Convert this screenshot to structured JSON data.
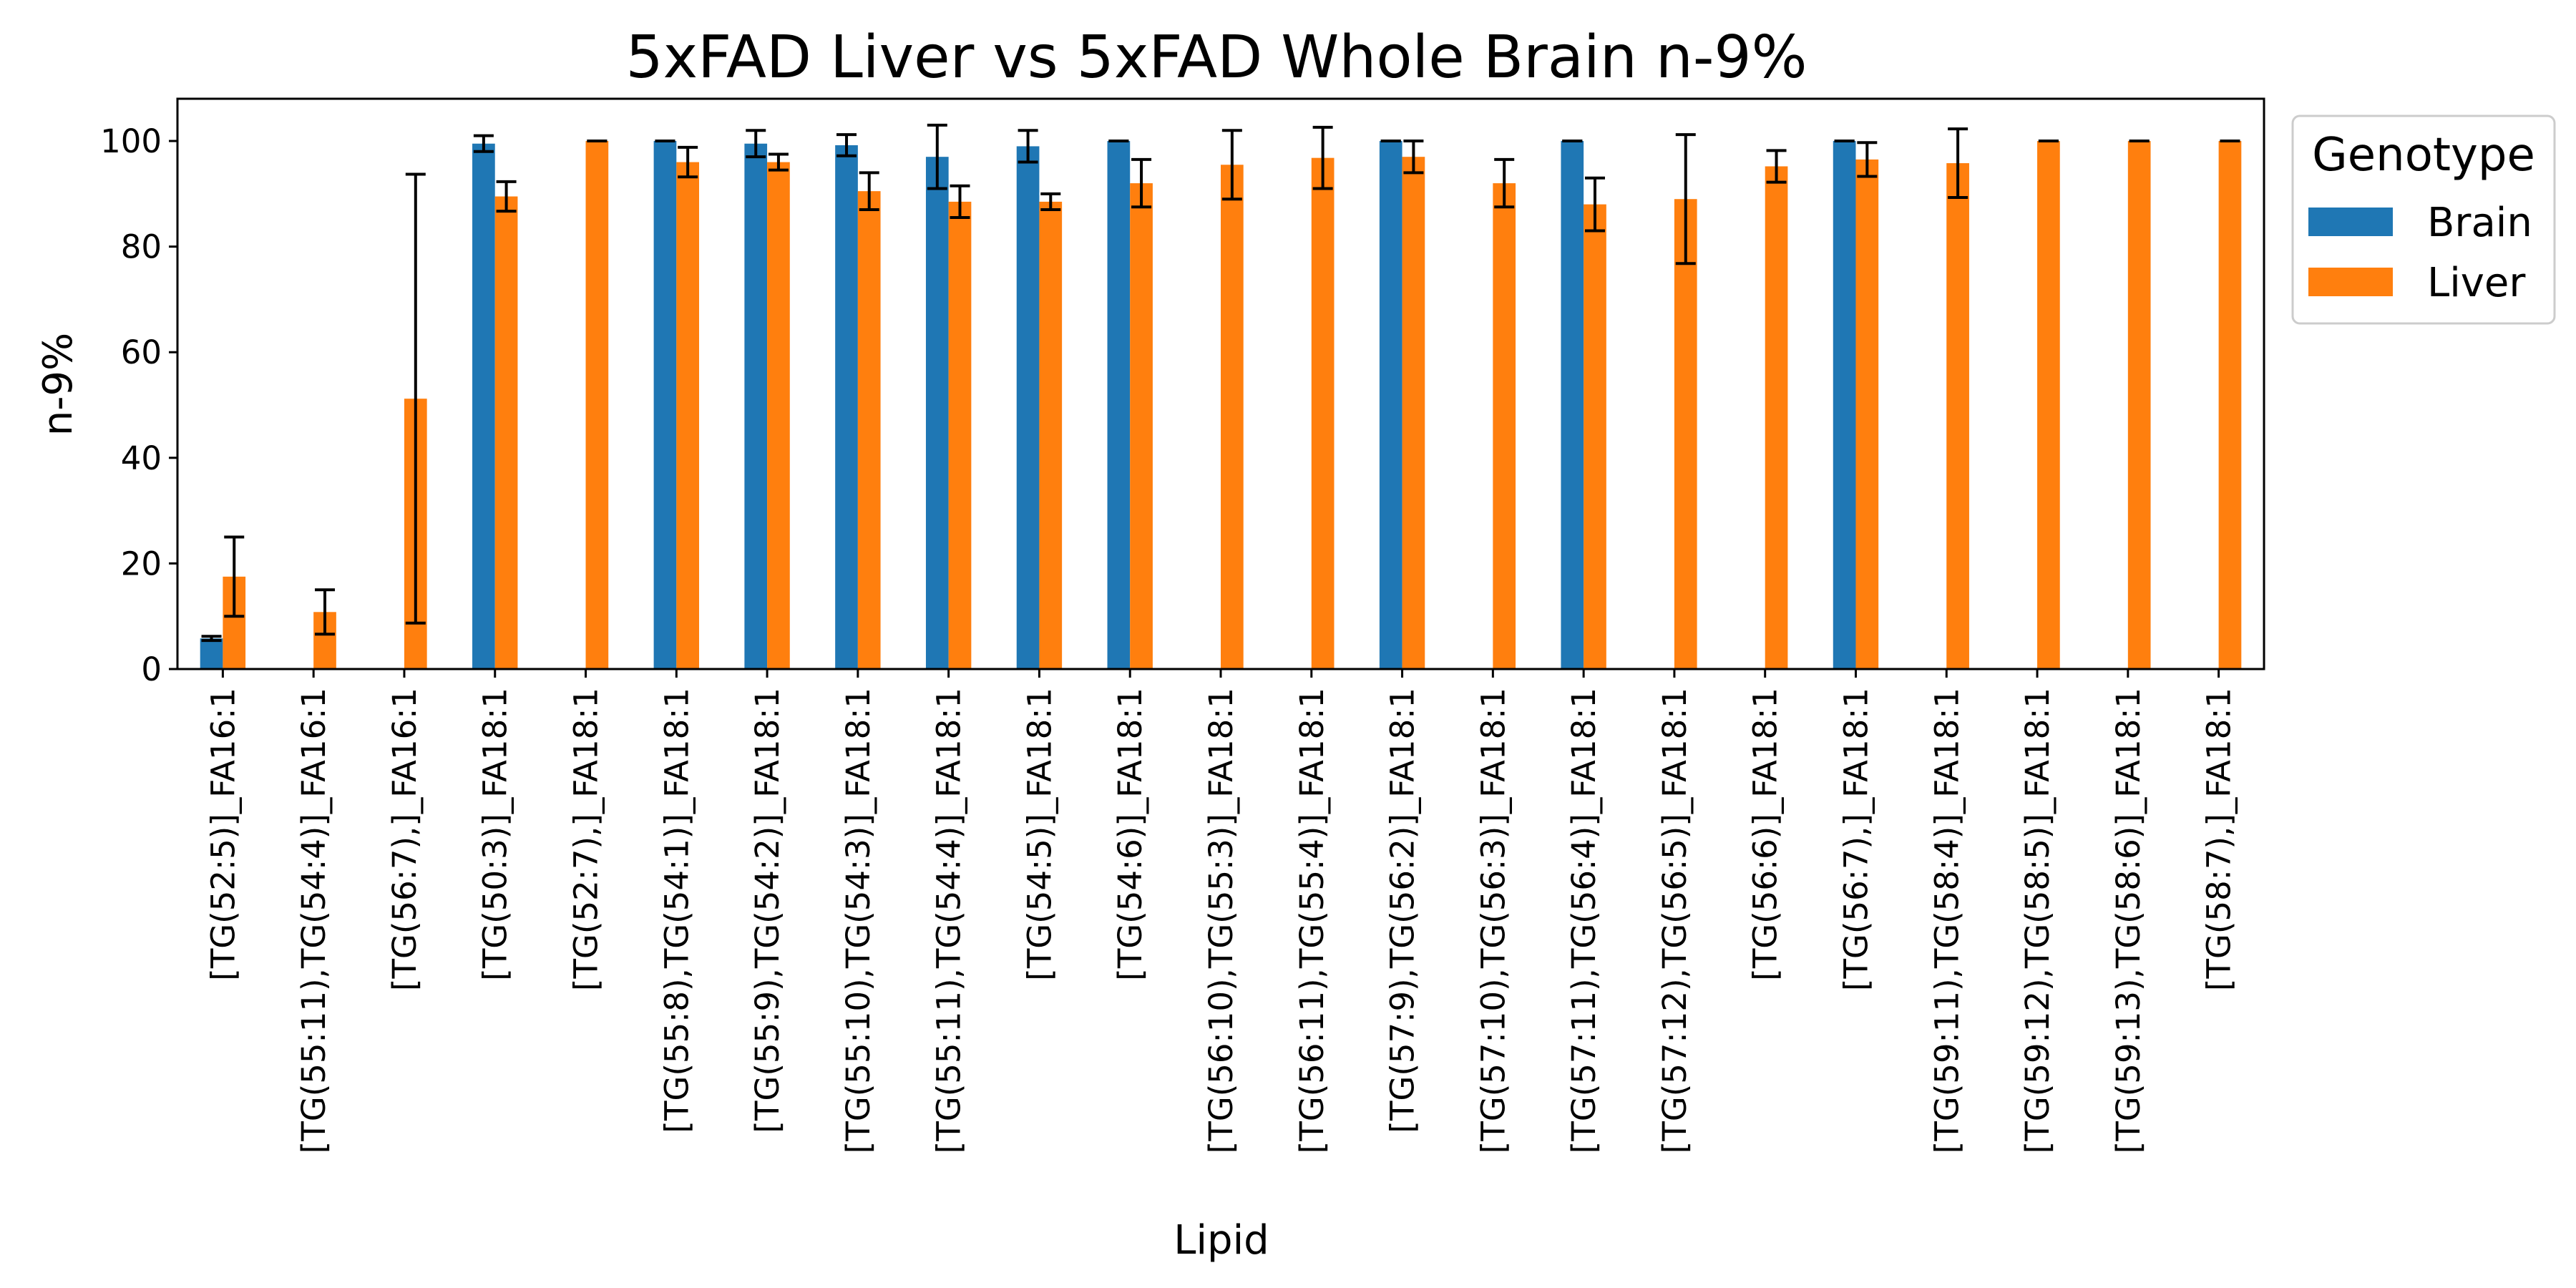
{
  "chart_data": {
    "type": "bar",
    "title": "5xFAD Liver vs 5xFAD Whole Brain n-9%",
    "xlabel": "Lipid",
    "ylabel": "n-9%",
    "ylim": [
      0,
      108
    ],
    "yticks": [
      0,
      20,
      40,
      60,
      80,
      100
    ],
    "grid": false,
    "legend": {
      "title": "Genotype",
      "position": "outside top-right"
    },
    "categories": [
      "[TG(52:5)]_FA16:1",
      "[TG(55:11),TG(54:4)]_FA16:1",
      "[TG(56:7),]_FA16:1",
      "[TG(50:3)]_FA18:1",
      "[TG(52:7),]_FA18:1",
      "[TG(55:8),TG(54:1)]_FA18:1",
      "[TG(55:9),TG(54:2)]_FA18:1",
      "[TG(55:10),TG(54:3)]_FA18:1",
      "[TG(55:11),TG(54:4)]_FA18:1",
      "[TG(54:5)]_FA18:1",
      "[TG(54:6)]_FA18:1",
      "[TG(56:10),TG(55:3)]_FA18:1",
      "[TG(56:11),TG(55:4)]_FA18:1",
      "[TG(57:9),TG(56:2)]_FA18:1",
      "[TG(57:10),TG(56:3)]_FA18:1",
      "[TG(57:11),TG(56:4)]_FA18:1",
      "[TG(57:12),TG(56:5)]_FA18:1",
      "[TG(56:6)]_FA18:1",
      "[TG(56:7),]_FA18:1",
      "[TG(59:11),TG(58:4)]_FA18:1",
      "[TG(59:12),TG(58:5)]_FA18:1",
      "[TG(59:13),TG(58:6)]_FA18:1",
      "[TG(58:7),]_FA18:1"
    ],
    "series": [
      {
        "name": "Brain",
        "color": "#1f77b4",
        "values": [
          5.8,
          null,
          null,
          99.5,
          null,
          100,
          99.5,
          99.2,
          97,
          99,
          100,
          null,
          null,
          100,
          null,
          100,
          null,
          null,
          100,
          null,
          null,
          null,
          null
        ],
        "error": [
          0.4,
          null,
          null,
          1.5,
          null,
          0,
          2.5,
          2.0,
          6.0,
          3.0,
          0,
          null,
          null,
          0,
          null,
          0,
          null,
          null,
          0,
          null,
          null,
          null,
          null
        ]
      },
      {
        "name": "Liver",
        "color": "#ff7f0e",
        "values": [
          17.5,
          10.8,
          51.2,
          89.5,
          100,
          96,
          96,
          90.5,
          88.5,
          88.5,
          92,
          95.5,
          96.8,
          97,
          92,
          88,
          89,
          95.2,
          96.5,
          95.8,
          100,
          100,
          100
        ],
        "error": [
          7.5,
          4.2,
          42.5,
          2.8,
          0,
          2.8,
          1.5,
          3.5,
          3.0,
          1.5,
          4.5,
          6.5,
          5.8,
          3.0,
          4.5,
          5.0,
          12.2,
          3.0,
          3.2,
          6.5,
          0,
          0,
          0
        ]
      }
    ]
  }
}
